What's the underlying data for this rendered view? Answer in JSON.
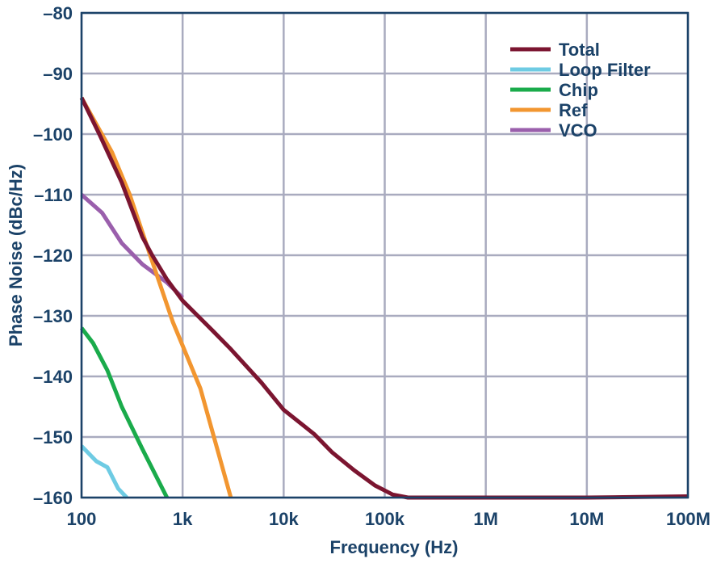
{
  "chart_data": {
    "type": "line",
    "title": "",
    "xlabel": "Frequency (Hz)",
    "ylabel": "Phase Noise (dBc/Hz)",
    "xscale": "log",
    "xlim": [
      100,
      100000000
    ],
    "ylim": [
      -160,
      -80
    ],
    "grid": true,
    "legend_position": "top-right",
    "x_ticks": [
      100,
      1000,
      10000,
      100000,
      1000000,
      10000000,
      100000000
    ],
    "x_tick_labels": [
      "100",
      "1k",
      "10k",
      "100k",
      "1M",
      "10M",
      "100M"
    ],
    "y_ticks": [
      -80,
      -90,
      -100,
      -110,
      -120,
      -130,
      -140,
      -150,
      -160
    ],
    "y_tick_labels": [
      "–80",
      "–90",
      "–100",
      "–110",
      "–120",
      "–130",
      "–140",
      "–150",
      "–160"
    ],
    "series": [
      {
        "name": "Total",
        "color": "#7b1530",
        "points": [
          [
            100,
            -94
          ],
          [
            150,
            -100
          ],
          [
            250,
            -108
          ],
          [
            400,
            -117
          ],
          [
            500,
            -120
          ],
          [
            700,
            -124
          ],
          [
            1000,
            -127.5
          ],
          [
            2000,
            -132.5
          ],
          [
            3000,
            -135.5
          ],
          [
            6000,
            -141
          ],
          [
            10000,
            -145.5
          ],
          [
            20000,
            -149.5
          ],
          [
            30000,
            -152.5
          ],
          [
            50000,
            -155.5
          ],
          [
            80000,
            -158
          ],
          [
            120000,
            -159.5
          ],
          [
            170000,
            -160
          ],
          [
            1000000,
            -160
          ],
          [
            10000000,
            -160
          ],
          [
            100000000,
            -159.8
          ]
        ]
      },
      {
        "name": "Loop Filter",
        "color": "#6ecbe3",
        "points": [
          [
            100,
            -151.5
          ],
          [
            140,
            -154
          ],
          [
            180,
            -155
          ],
          [
            230,
            -158.5
          ],
          [
            280,
            -160
          ]
        ]
      },
      {
        "name": "Chip",
        "color": "#1aab4b",
        "points": [
          [
            100,
            -132
          ],
          [
            130,
            -134.5
          ],
          [
            180,
            -139
          ],
          [
            250,
            -145
          ],
          [
            400,
            -152
          ],
          [
            700,
            -160
          ]
        ]
      },
      {
        "name": "Ref",
        "color": "#f29630",
        "points": [
          [
            100,
            -94
          ],
          [
            200,
            -103
          ],
          [
            300,
            -110
          ],
          [
            500,
            -121
          ],
          [
            800,
            -131
          ],
          [
            1500,
            -142
          ],
          [
            3000,
            -160
          ]
        ]
      },
      {
        "name": "VCO",
        "color": "#9a5fac",
        "points": [
          [
            100,
            -110
          ],
          [
            160,
            -113
          ],
          [
            250,
            -118
          ],
          [
            400,
            -121.5
          ],
          [
            700,
            -124.5
          ],
          [
            1000,
            -127
          ]
        ]
      }
    ]
  }
}
